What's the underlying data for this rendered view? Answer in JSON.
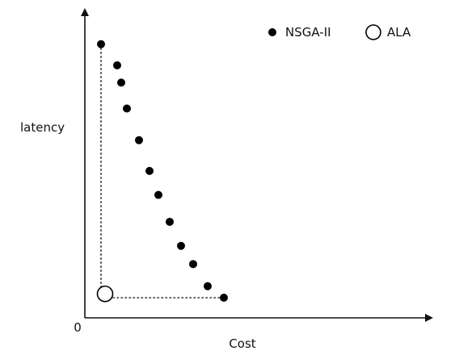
{
  "chart_data": {
    "type": "scatter",
    "xlabel": "Cost",
    "ylabel": "latency",
    "origin_label": "0",
    "xlim": [
      0,
      42
    ],
    "ylim": [
      0,
      31
    ],
    "grid": false,
    "legend_position": "top-right",
    "series": [
      {
        "name": "NSGA-II",
        "marker": "filled-circle",
        "color": "#000000",
        "points": [
          {
            "x": 2.0,
            "y": 28.5
          },
          {
            "x": 4.0,
            "y": 26.3
          },
          {
            "x": 4.5,
            "y": 24.5
          },
          {
            "x": 5.2,
            "y": 21.8
          },
          {
            "x": 6.7,
            "y": 18.5
          },
          {
            "x": 8.0,
            "y": 15.3
          },
          {
            "x": 9.1,
            "y": 12.8
          },
          {
            "x": 10.5,
            "y": 10.0
          },
          {
            "x": 11.9,
            "y": 7.5
          },
          {
            "x": 13.4,
            "y": 5.6
          },
          {
            "x": 15.2,
            "y": 3.3
          },
          {
            "x": 17.2,
            "y": 2.1
          }
        ]
      },
      {
        "name": "ALA",
        "marker": "hollow-circle",
        "color": "#000000",
        "points": [
          {
            "x": 2.5,
            "y": 2.5
          }
        ]
      }
    ],
    "reference_lines": {
      "style": "dotted",
      "vertical_x": 2.0,
      "horizontal_y": 2.1,
      "from_point": {
        "x": 2.0,
        "y": 28.5
      },
      "to_point": {
        "x": 17.2,
        "y": 2.1
      }
    }
  }
}
